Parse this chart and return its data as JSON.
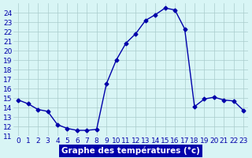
{
  "hours": [
    0,
    1,
    2,
    3,
    4,
    5,
    6,
    7,
    8,
    9,
    10,
    11,
    12,
    13,
    14,
    15,
    16,
    17,
    18,
    19,
    20,
    21,
    22,
    23
  ],
  "temperatures": [
    14.8,
    14.4,
    13.8,
    13.6,
    12.2,
    11.8,
    11.6,
    11.6,
    11.7,
    16.5,
    19.0,
    20.8,
    21.8,
    23.2,
    23.8,
    24.5,
    24.3,
    22.3,
    14.1,
    14.9,
    15.1,
    14.8,
    14.7,
    13.7
  ],
  "line_color": "#0000aa",
  "marker": "D",
  "marker_size": 2.5,
  "background_color": "#d8f5f5",
  "grid_color": "#aacccc",
  "xlabel": "Graphe des températures (°c)",
  "xlabel_bg": "#0000aa",
  "xlabel_color": "#ffffff",
  "ylim": [
    11,
    25
  ],
  "yticks": [
    11,
    12,
    13,
    14,
    15,
    16,
    17,
    18,
    19,
    20,
    21,
    22,
    23,
    24
  ],
  "xticks": [
    0,
    1,
    2,
    3,
    4,
    5,
    6,
    7,
    8,
    9,
    10,
    11,
    12,
    13,
    14,
    15,
    16,
    17,
    18,
    19,
    20,
    21,
    22,
    23
  ],
  "tick_fontsize": 6.5,
  "label_fontsize": 7.5
}
